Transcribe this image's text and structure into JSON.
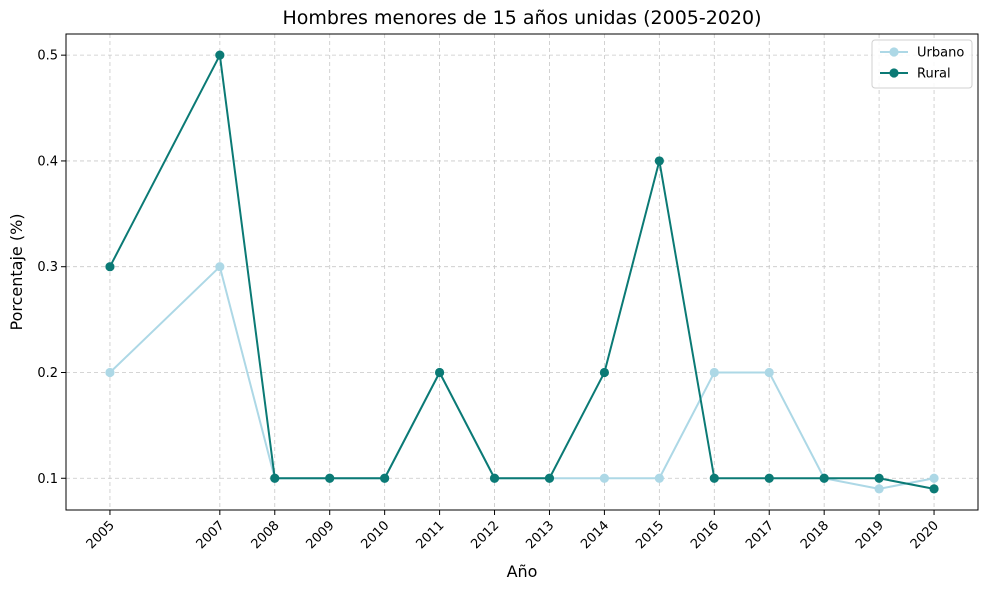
{
  "chart_data": {
    "type": "line",
    "title": "Hombres menores de 15 años unidas (2005-2020)",
    "xlabel": "Año",
    "ylabel": "Porcentaje (%)",
    "x": [
      2005,
      2007,
      2008,
      2009,
      2010,
      2011,
      2012,
      2013,
      2014,
      2015,
      2016,
      2017,
      2018,
      2019,
      2020
    ],
    "x_ticks": [
      2005,
      2007,
      2008,
      2009,
      2010,
      2011,
      2012,
      2013,
      2014,
      2015,
      2016,
      2017,
      2018,
      2019,
      2020
    ],
    "y_ticks": [
      0.1,
      0.2,
      0.3,
      0.4,
      0.5
    ],
    "xlim": [
      2004.2,
      2020.8
    ],
    "ylim": [
      0.07,
      0.52
    ],
    "grid": true,
    "legend_position": "top-right",
    "series": [
      {
        "name": "Urbano",
        "color": "#add8e6",
        "values": [
          0.2,
          0.3,
          0.1,
          0.1,
          0.1,
          0.2,
          0.1,
          0.1,
          0.1,
          0.1,
          0.2,
          0.2,
          0.1,
          0.09,
          0.1
        ]
      },
      {
        "name": "Rural",
        "color": "#0b7a75",
        "values": [
          0.3,
          0.5,
          0.1,
          0.1,
          0.1,
          0.2,
          0.1,
          0.1,
          0.2,
          0.4,
          0.1,
          0.1,
          0.1,
          0.1,
          0.09
        ]
      }
    ]
  }
}
